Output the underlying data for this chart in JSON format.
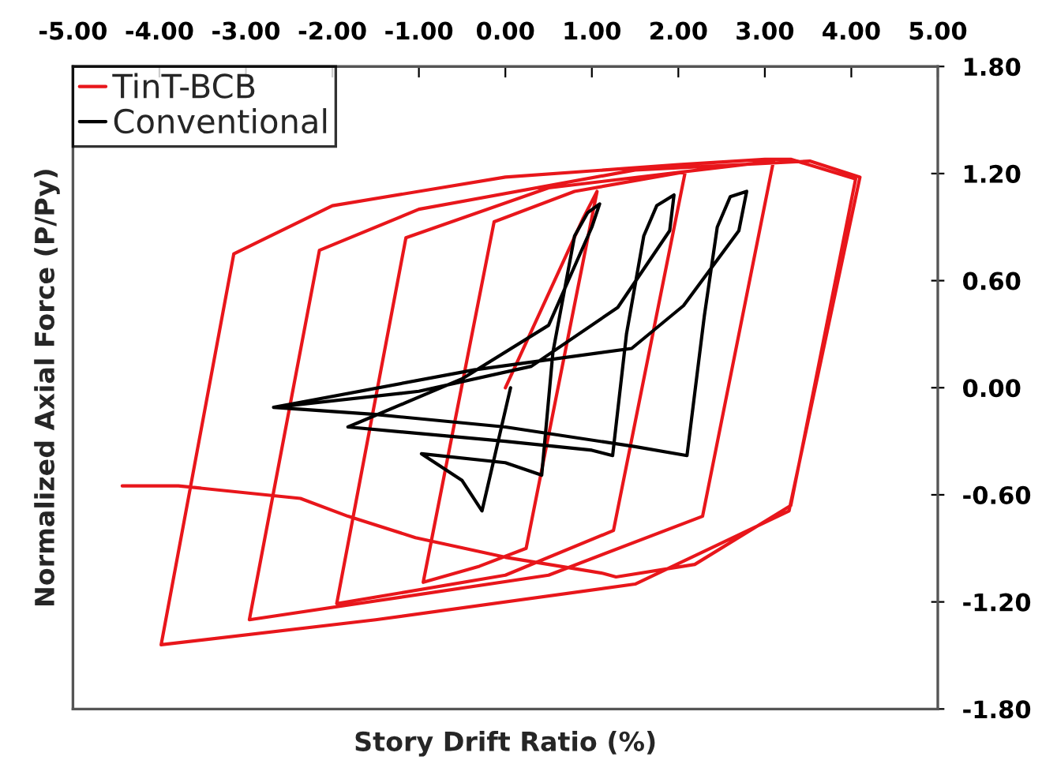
{
  "chart_data": {
    "type": "line",
    "xlabel": "Story Drift Ratio (%)",
    "ylabel": "Normalized Axial Force (P/Py)",
    "xlim": [
      -5,
      5
    ],
    "ylim": [
      -1.8,
      1.8
    ],
    "xticks": [
      {
        "value": -5,
        "label": "-5.00"
      },
      {
        "value": -4,
        "label": "-4.00"
      },
      {
        "value": -3,
        "label": "-3.00"
      },
      {
        "value": -2,
        "label": "-2.00"
      },
      {
        "value": -1,
        "label": "-1.00"
      },
      {
        "value": 0,
        "label": "0.00"
      },
      {
        "value": 1,
        "label": "1.00"
      },
      {
        "value": 2,
        "label": "2.00"
      },
      {
        "value": 3,
        "label": "3.00"
      },
      {
        "value": 4,
        "label": "4.00"
      },
      {
        "value": 5,
        "label": "5.00"
      }
    ],
    "yticks": [
      {
        "value": -1.8,
        "label": "-1.80"
      },
      {
        "value": -1.2,
        "label": "-1.20"
      },
      {
        "value": -0.6,
        "label": "-0.60"
      },
      {
        "value": 0,
        "label": "0.00"
      },
      {
        "value": 0.6,
        "label": "0.60"
      },
      {
        "value": 1.2,
        "label": "1.20"
      },
      {
        "value": 1.8,
        "label": "1.80"
      }
    ],
    "legend": "top left",
    "grid": false,
    "marker": "none",
    "line_style": "solid",
    "series": [
      {
        "name": "TinT-BCB",
        "color": "#e8161b",
        "x": [
          0,
          0.9,
          1.06,
          0.24,
          -0.3,
          -0.95,
          -0.13,
          0.8,
          2.08,
          1.25,
          0,
          -1.95,
          -1.15,
          0.5,
          3.1,
          2.28,
          0.5,
          -2.96,
          -2.15,
          -1,
          1.5,
          3.52,
          4.1,
          3.28,
          1.5,
          -1.5,
          -3.98,
          -3.14,
          -2,
          0,
          2,
          3.0,
          3.3,
          4.05,
          3.3,
          2.19,
          1.28,
          1.13,
          0,
          -1.04,
          -1.82,
          -2.37,
          -3.78,
          -4.43
        ],
        "values": [
          0,
          0.95,
          1.1,
          -0.9,
          -1.0,
          -1.09,
          0.93,
          1.1,
          1.21,
          -0.8,
          -1.05,
          -1.21,
          0.84,
          1.12,
          1.27,
          -0.72,
          -1.05,
          -1.3,
          0.77,
          1.0,
          1.22,
          1.27,
          1.18,
          -0.69,
          -1.1,
          -1.3,
          -1.44,
          0.75,
          1.02,
          1.18,
          1.25,
          1.28,
          1.28,
          1.17,
          -0.66,
          -0.99,
          -1.06,
          -1.04,
          -0.95,
          -0.84,
          -0.72,
          -0.62,
          -0.55,
          -0.55
        ]
      },
      {
        "name": "Conventional",
        "color": "#000000",
        "x": [
          0.06,
          -0.27,
          -0.5,
          -0.97,
          0,
          0.42,
          0.55,
          0.8,
          0.95,
          1.09,
          1.0,
          0.5,
          -0.5,
          -1.82,
          0,
          1.0,
          1.24,
          1.4,
          1.6,
          1.75,
          1.95,
          1.9,
          1.3,
          0.3,
          -1.0,
          -2.68,
          -1.5,
          0,
          1.5,
          2.1,
          2.3,
          2.45,
          2.6,
          2.79,
          2.7,
          2.06,
          1.46,
          -0.36,
          -2.68
        ],
        "values": [
          0.0,
          -0.69,
          -0.52,
          -0.37,
          -0.42,
          -0.49,
          0.2,
          0.85,
          0.98,
          1.03,
          0.9,
          0.35,
          0.05,
          -0.22,
          -0.3,
          -0.35,
          -0.38,
          0.3,
          0.85,
          1.02,
          1.08,
          0.88,
          0.45,
          0.12,
          -0.02,
          -0.11,
          -0.15,
          -0.22,
          -0.33,
          -0.38,
          0.4,
          0.9,
          1.07,
          1.1,
          0.88,
          0.46,
          0.22,
          0.1,
          -0.11
        ]
      }
    ]
  }
}
